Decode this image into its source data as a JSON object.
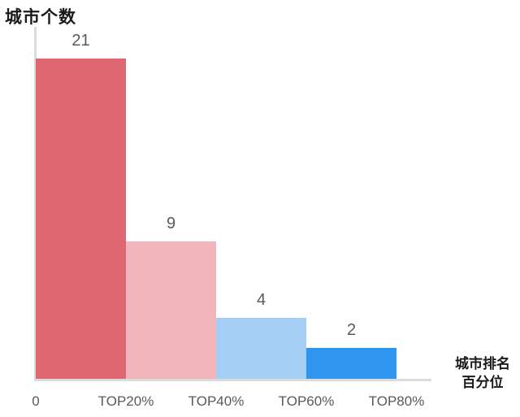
{
  "chart_data": {
    "type": "bar",
    "title": "城市个数",
    "xlabel_lines": [
      "城市排名",
      "百分位"
    ],
    "ylabel": "城市个数",
    "xlabel": "城市排名百分位",
    "x_tick_labels": [
      "0",
      "TOP20%",
      "TOP40%",
      "TOP60%",
      "TOP80%"
    ],
    "categories": [
      "0–TOP20%",
      "TOP20%–TOP40%",
      "TOP40%–TOP60%",
      "TOP60%–TOP80%"
    ],
    "values": [
      21,
      9,
      4,
      2
    ],
    "bar_colors": [
      "#DE6772",
      "#F2B5BB",
      "#A5CEF5",
      "#2E96EF"
    ],
    "ylim": [
      0,
      22
    ],
    "grid": false,
    "legend": "none",
    "axis_color": "#DBDBDB",
    "value_label_color": "#595959",
    "tick_label_color": "#595959",
    "title_color": "#1A1A1A"
  }
}
